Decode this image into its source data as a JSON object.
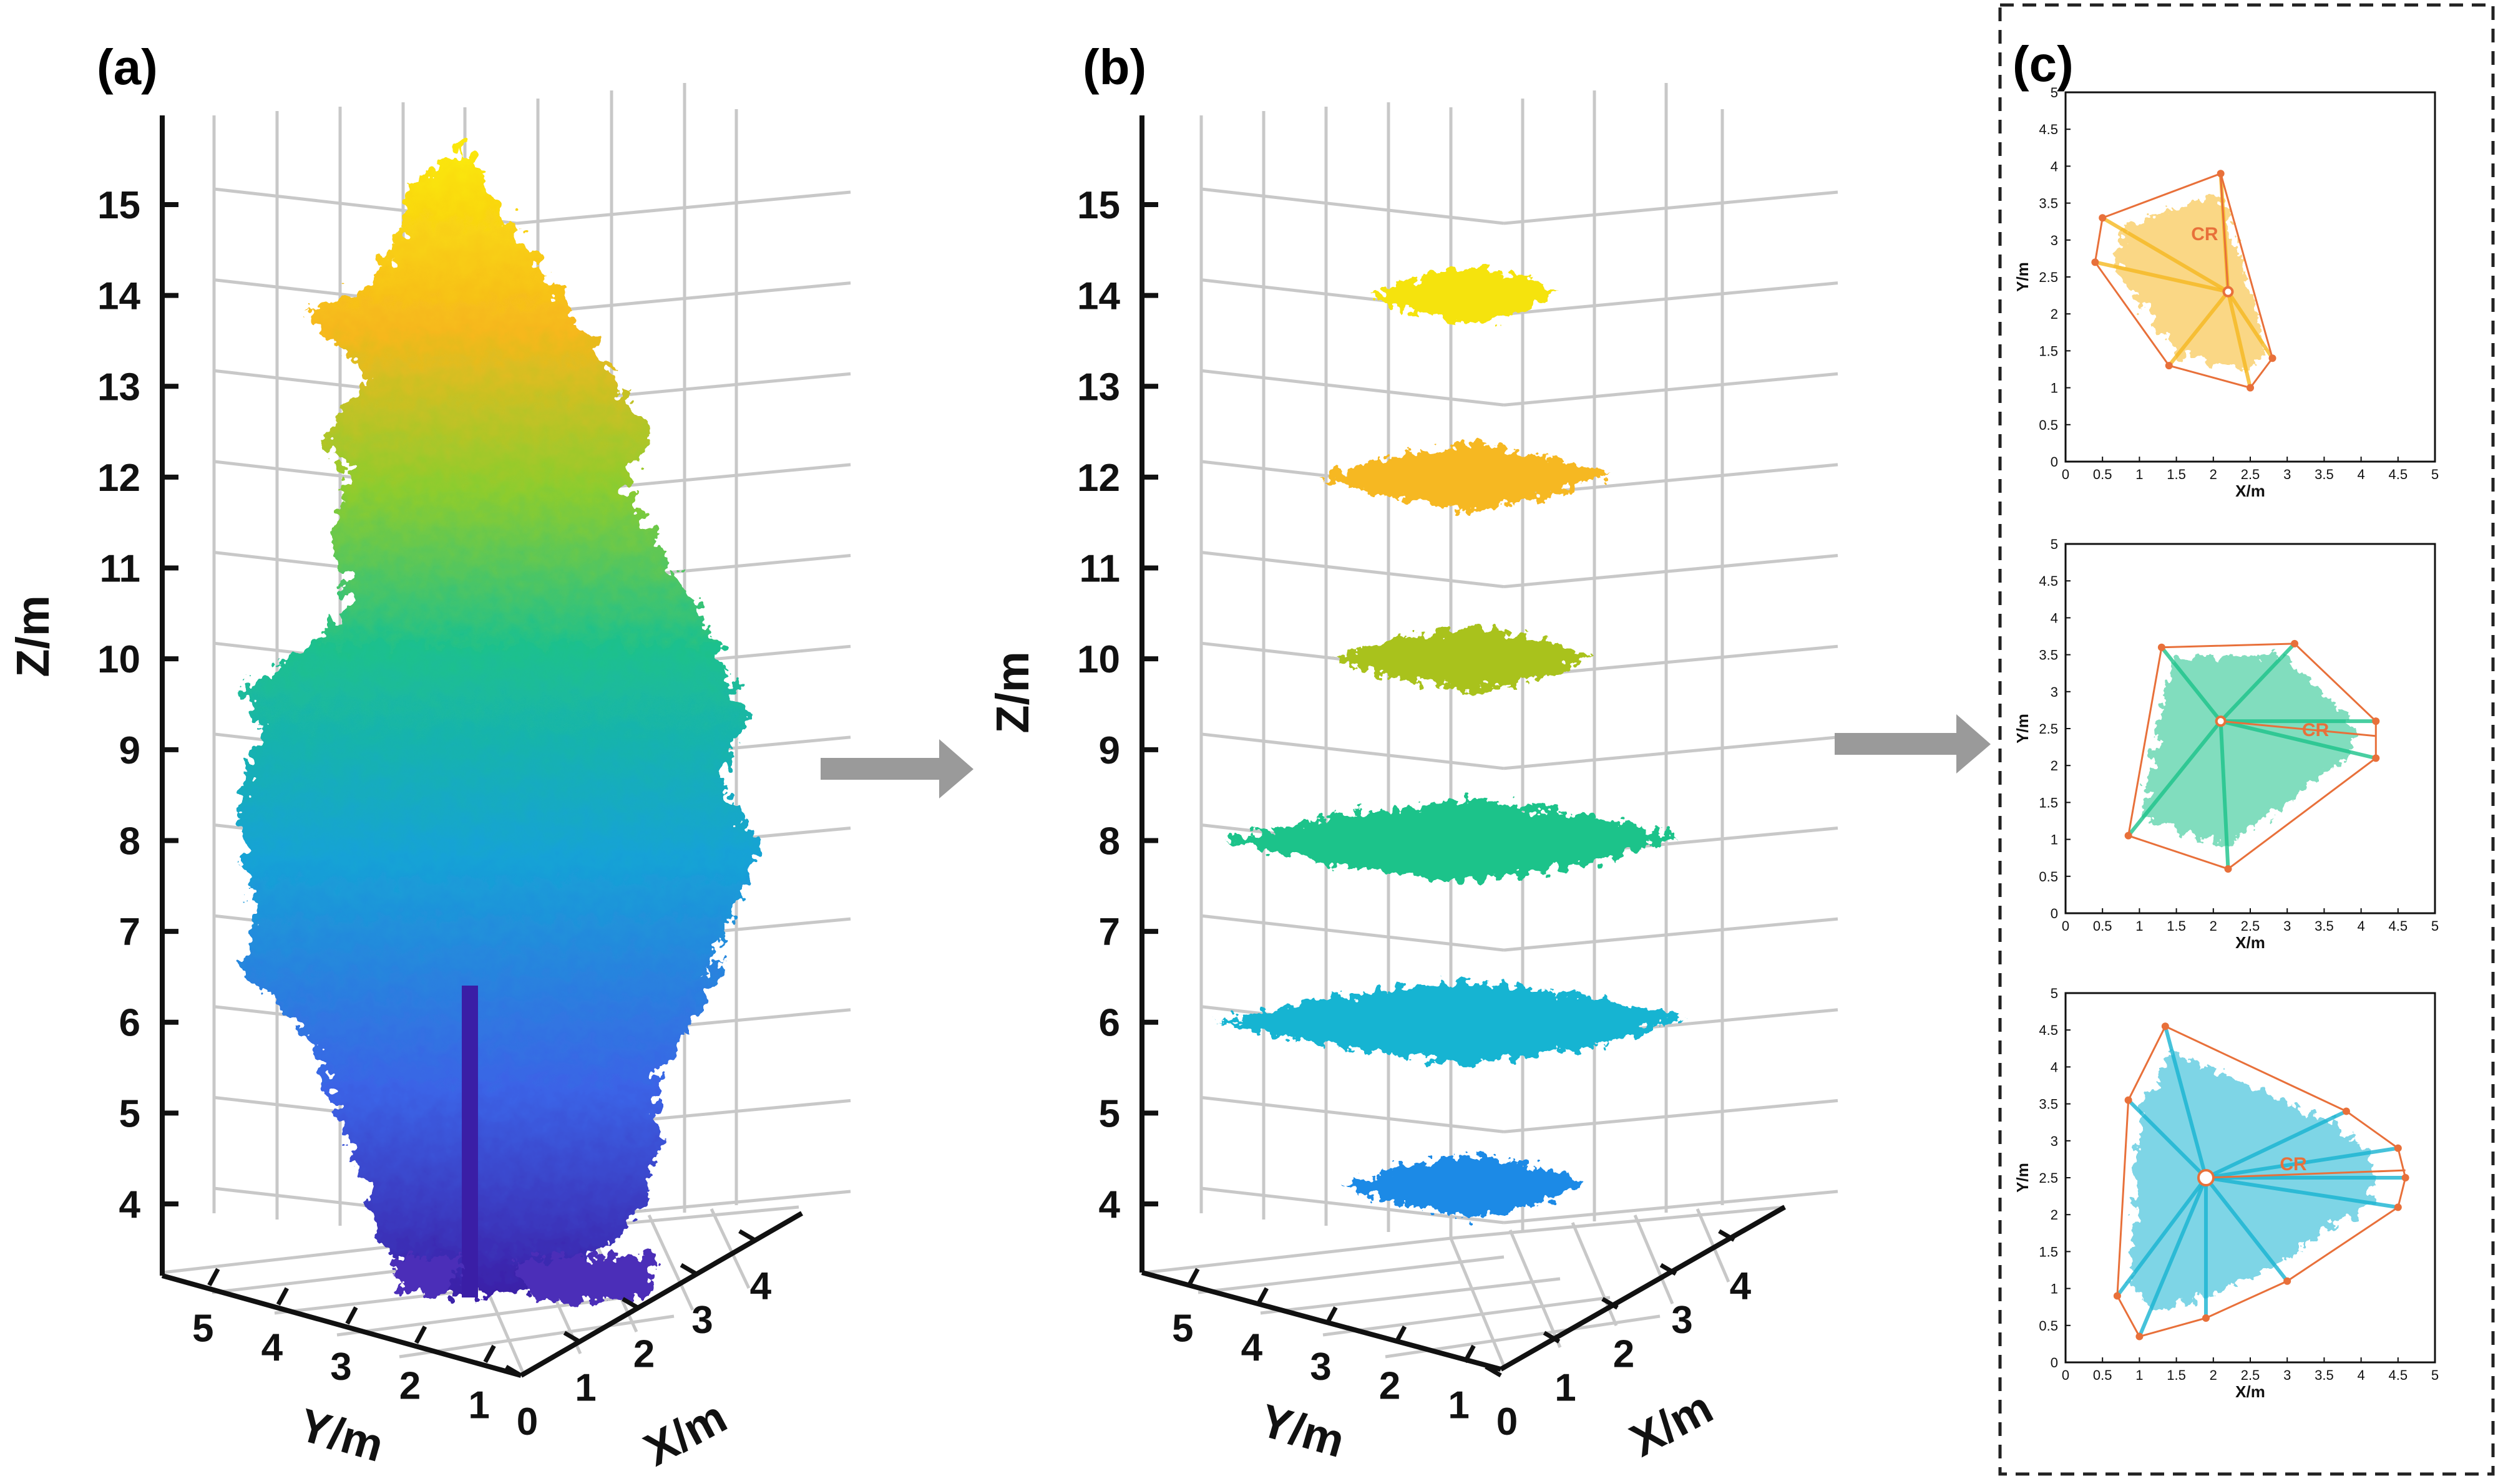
{
  "colors": {
    "grid": "#c8c8c8",
    "axis": "#111111",
    "arrow": "#9a9a9a",
    "hull": "#e8703a",
    "border": "#222222"
  },
  "panels": {
    "a": {
      "label": "(a)"
    },
    "b": {
      "label": "(b)"
    },
    "c": {
      "label": "(c)"
    }
  },
  "chart_data": [
    {
      "id": "a",
      "type": "scatter",
      "title": "(a)",
      "xlabel": "X/m",
      "ylabel": "Y/m",
      "zlabel": "Z/m",
      "xticks": [
        "0",
        "1",
        "2",
        "3",
        "4"
      ],
      "yticks": [
        "1",
        "2",
        "3",
        "4",
        "5"
      ],
      "zticks": [
        "4",
        "5",
        "6",
        "7",
        "8",
        "9",
        "10",
        "11",
        "12",
        "13",
        "14",
        "15"
      ],
      "zlim": [
        3.6,
        15.8
      ],
      "colormap": [
        "#3a1ea6",
        "#3b63e6",
        "#16a2d6",
        "#1bc08e",
        "#8dcc2e",
        "#f6b81c",
        "#fbea0a"
      ],
      "description_values": {
        "tree_height_top_m": 15.6,
        "tree_base_m": 3.7
      }
    },
    {
      "id": "b",
      "type": "scatter",
      "title": "(b)",
      "xlabel": "X/m",
      "ylabel": "Y/m",
      "zlabel": "Z/m",
      "xticks": [
        "0",
        "1",
        "2",
        "3",
        "4"
      ],
      "yticks": [
        "1",
        "2",
        "3",
        "4",
        "5"
      ],
      "zticks": [
        "4",
        "5",
        "6",
        "7",
        "8",
        "9",
        "10",
        "11",
        "12",
        "13",
        "14",
        "15"
      ],
      "zlim": [
        3.6,
        15.8
      ],
      "slices": [
        {
          "z": 14.0,
          "color": "#f5e30e",
          "width": 1.4
        },
        {
          "z": 12.0,
          "color": "#f6b820",
          "width": 2.1
        },
        {
          "z": 10.0,
          "color": "#a9c21a",
          "width": 1.9
        },
        {
          "z": 8.0,
          "color": "#1cc38a",
          "width": 3.3
        },
        {
          "z": 6.0,
          "color": "#18b4d2",
          "width": 3.4
        },
        {
          "z": 4.2,
          "color": "#1c8ae6",
          "width": 1.8
        }
      ]
    },
    {
      "id": "c1",
      "type": "scatter",
      "xlabel": "X/m",
      "ylabel": "Y/m",
      "xticks": [
        "0",
        "0.5",
        "1",
        "1.5",
        "2",
        "2.5",
        "3",
        "3.5",
        "4",
        "4.5",
        "5"
      ],
      "yticks": [
        "0",
        "0.5",
        "1",
        "1.5",
        "2",
        "2.5",
        "3",
        "3.5",
        "4",
        "4.5",
        "5"
      ],
      "xlim": [
        0,
        5
      ],
      "ylim": [
        0,
        5
      ],
      "point_color": "#f6b820",
      "center": [
        2.2,
        2.3
      ],
      "cr_label": "CR",
      "cr_label_pos": [
        1.7,
        3.0
      ],
      "hull": [
        [
          0.5,
          3.3
        ],
        [
          2.1,
          3.9
        ],
        [
          2.8,
          1.4
        ],
        [
          2.5,
          1.0
        ],
        [
          1.4,
          1.3
        ],
        [
          0.4,
          2.7
        ]
      ],
      "cr_end": [
        2.1,
        3.85
      ]
    },
    {
      "id": "c2",
      "type": "scatter",
      "xlabel": "X/m",
      "ylabel": "Y/m",
      "xticks": [
        "0",
        "0.5",
        "1",
        "1.5",
        "2",
        "2.5",
        "3",
        "3.5",
        "4",
        "4.5",
        "5"
      ],
      "yticks": [
        "0",
        "0.5",
        "1",
        "1.5",
        "2",
        "2.5",
        "3",
        "3.5",
        "4",
        "4.5",
        "5"
      ],
      "xlim": [
        0,
        5
      ],
      "ylim": [
        0,
        5
      ],
      "point_color": "#1cc38a",
      "center": [
        2.1,
        2.6
      ],
      "cr_label": "CR",
      "cr_label_pos": [
        3.2,
        2.4
      ],
      "hull": [
        [
          1.3,
          3.6
        ],
        [
          3.1,
          3.65
        ],
        [
          4.2,
          2.6
        ],
        [
          4.2,
          2.1
        ],
        [
          2.2,
          0.6
        ],
        [
          0.85,
          1.05
        ]
      ],
      "cr_end": [
        4.2,
        2.4
      ]
    },
    {
      "id": "c3",
      "type": "scatter",
      "xlabel": "X/m",
      "ylabel": "Y/m",
      "xticks": [
        "0",
        "0.5",
        "1",
        "1.5",
        "2",
        "2.5",
        "3",
        "3.5",
        "4",
        "4.5",
        "5"
      ],
      "yticks": [
        "0",
        "0.5",
        "1",
        "1.5",
        "2",
        "2.5",
        "3",
        "3.5",
        "4",
        "4.5",
        "5"
      ],
      "xlim": [
        0,
        5
      ],
      "ylim": [
        0,
        5
      ],
      "point_color": "#18b4d2",
      "center": [
        1.9,
        2.5
      ],
      "cr_label": "CR",
      "cr_label_pos": [
        2.9,
        2.6
      ],
      "hull": [
        [
          1.35,
          4.55
        ],
        [
          3.8,
          3.4
        ],
        [
          4.5,
          2.9
        ],
        [
          4.6,
          2.5
        ],
        [
          4.5,
          2.1
        ],
        [
          3.0,
          1.1
        ],
        [
          1.9,
          0.6
        ],
        [
          1.0,
          0.35
        ],
        [
          0.7,
          0.9
        ],
        [
          0.85,
          3.55
        ]
      ],
      "cr_end": [
        4.6,
        2.6
      ]
    }
  ]
}
